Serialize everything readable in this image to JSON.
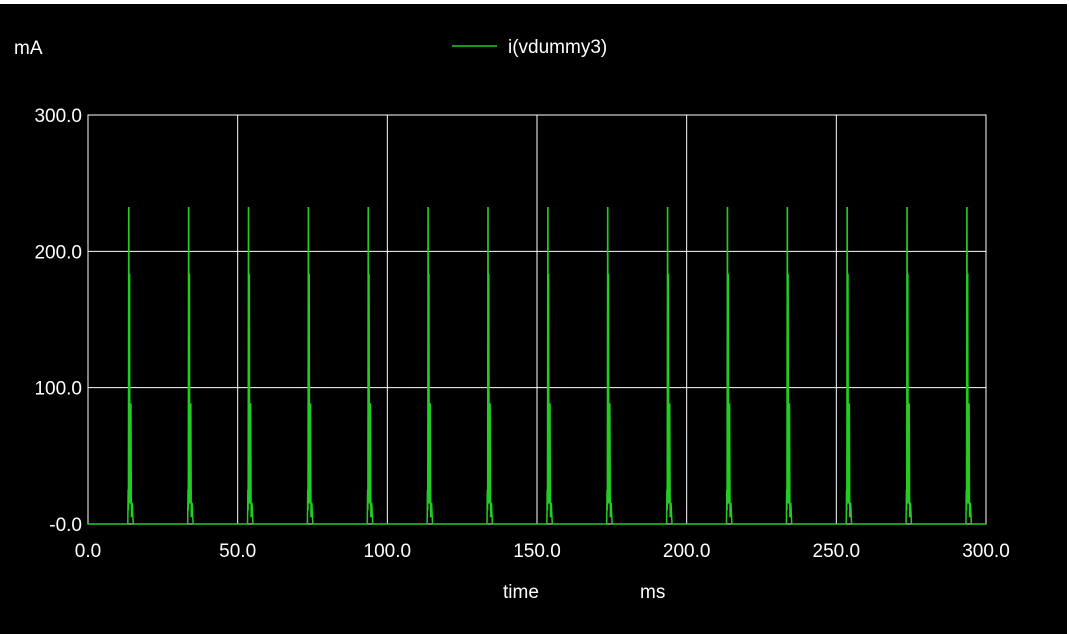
{
  "window": {
    "background": "#000000",
    "foreground": "#ffffff"
  },
  "chart_data": {
    "type": "line",
    "title": "",
    "ylabel": "mA",
    "xlabel": "time",
    "xunit": "ms",
    "xlim": [
      0,
      300
    ],
    "ylim": [
      0,
      300
    ],
    "x_ticks": [
      "0.0",
      "50.0",
      "100.0",
      "150.0",
      "200.0",
      "250.0",
      "300.0"
    ],
    "y_ticks": [
      "-0.0",
      "100.0",
      "200.0",
      "300.0"
    ],
    "grid": true,
    "legend_position": "top-center",
    "series": [
      {
        "name": "i(vdummy3)",
        "color": "#22cc22",
        "pulse_start_ms": [
          13.3,
          33.3,
          53.3,
          73.3,
          93.3,
          113.3,
          133.3,
          153.3,
          173.3,
          193.3,
          213.3,
          233.3,
          253.3,
          273.3,
          293.3
        ],
        "pulse_shape": {
          "dt_ms": [
            0,
            0.1,
            0.2,
            0.3,
            0.35,
            0.45,
            0.5,
            0.6,
            0.7,
            0.85,
            1.0,
            1.05,
            1.2,
            1.3,
            1.35,
            1.5,
            1.8,
            2.0
          ],
          "y_mA": [
            0,
            25,
            10,
            232,
            232,
            15,
            183,
            183,
            15,
            18,
            88,
            88,
            5,
            12,
            15,
            15,
            0,
            0
          ]
        }
      }
    ]
  }
}
